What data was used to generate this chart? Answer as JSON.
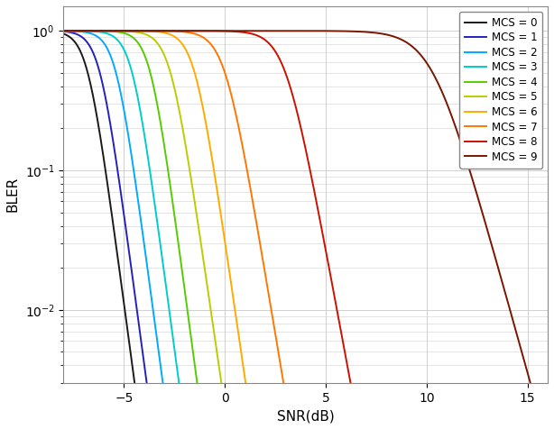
{
  "xlabel": "SNR(dB)",
  "ylabel": "BLER",
  "xlim": [
    -8,
    16
  ],
  "x_ticks": [
    -5,
    0,
    5,
    10,
    15
  ],
  "mcs_labels": [
    "MCS = 0",
    "MCS = 1",
    "MCS = 2",
    "MCS = 3",
    "MCS = 4",
    "MCS = 5",
    "MCS = 6",
    "MCS = 7",
    "MCS = 8",
    "MCS = 9"
  ],
  "colors": [
    "#1a1a1a",
    "#2222bb",
    "#00aaff",
    "#00cccc",
    "#55cc00",
    "#bbcc00",
    "#ffaa00",
    "#ff7700",
    "#cc1100",
    "#7a1500"
  ],
  "snr_50": [
    -6.8,
    -6.2,
    -5.4,
    -4.6,
    -3.7,
    -2.7,
    -1.5,
    0.0,
    3.0,
    10.3
  ],
  "steepness": [
    2.5,
    2.5,
    2.5,
    2.5,
    2.5,
    2.3,
    2.3,
    2.0,
    1.8,
    1.2
  ],
  "background_color": "#ffffff",
  "grid_color": "#d0d0d0",
  "legend_fontsize": 8.5,
  "axis_fontsize": 11,
  "tick_fontsize": 10
}
